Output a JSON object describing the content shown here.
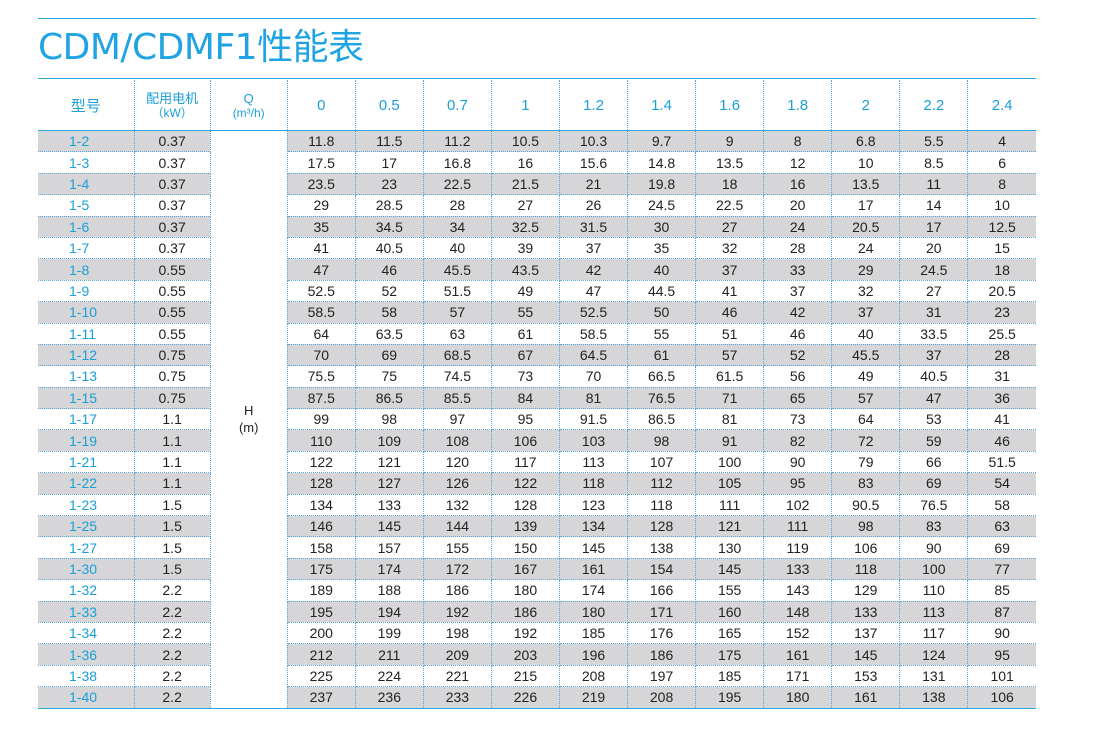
{
  "title": "CDM/CDMF1性能表",
  "headers": {
    "model": "型号",
    "motor_top": "配用电机",
    "motor_unit": "（kW）",
    "q_top": "Q",
    "q_unit": "(m³/h)",
    "flows": [
      "0",
      "0.5",
      "0.7",
      "1",
      "1.2",
      "1.4",
      "1.6",
      "1.8",
      "2",
      "2.2",
      "2.4"
    ]
  },
  "h_label": "H",
  "h_unit": "(m)",
  "rows": [
    {
      "model": "1-2",
      "kw": "0.37",
      "h": [
        "11.8",
        "11.5",
        "11.2",
        "10.5",
        "10.3",
        "9.7",
        "9",
        "8",
        "6.8",
        "5.5",
        "4"
      ]
    },
    {
      "model": "1-3",
      "kw": "0.37",
      "h": [
        "17.5",
        "17",
        "16.8",
        "16",
        "15.6",
        "14.8",
        "13.5",
        "12",
        "10",
        "8.5",
        "6"
      ]
    },
    {
      "model": "1-4",
      "kw": "0.37",
      "h": [
        "23.5",
        "23",
        "22.5",
        "21.5",
        "21",
        "19.8",
        "18",
        "16",
        "13.5",
        "11",
        "8"
      ]
    },
    {
      "model": "1-5",
      "kw": "0.37",
      "h": [
        "29",
        "28.5",
        "28",
        "27",
        "26",
        "24.5",
        "22.5",
        "20",
        "17",
        "14",
        "10"
      ]
    },
    {
      "model": "1-6",
      "kw": "0.37",
      "h": [
        "35",
        "34.5",
        "34",
        "32.5",
        "31.5",
        "30",
        "27",
        "24",
        "20.5",
        "17",
        "12.5"
      ]
    },
    {
      "model": "1-7",
      "kw": "0.37",
      "h": [
        "41",
        "40.5",
        "40",
        "39",
        "37",
        "35",
        "32",
        "28",
        "24",
        "20",
        "15"
      ]
    },
    {
      "model": "1-8",
      "kw": "0.55",
      "h": [
        "47",
        "46",
        "45.5",
        "43.5",
        "42",
        "40",
        "37",
        "33",
        "29",
        "24.5",
        "18"
      ]
    },
    {
      "model": "1-9",
      "kw": "0.55",
      "h": [
        "52.5",
        "52",
        "51.5",
        "49",
        "47",
        "44.5",
        "41",
        "37",
        "32",
        "27",
        "20.5"
      ]
    },
    {
      "model": "1-10",
      "kw": "0.55",
      "h": [
        "58.5",
        "58",
        "57",
        "55",
        "52.5",
        "50",
        "46",
        "42",
        "37",
        "31",
        "23"
      ]
    },
    {
      "model": "1-11",
      "kw": "0.55",
      "h": [
        "64",
        "63.5",
        "63",
        "61",
        "58.5",
        "55",
        "51",
        "46",
        "40",
        "33.5",
        "25.5"
      ]
    },
    {
      "model": "1-12",
      "kw": "0.75",
      "h": [
        "70",
        "69",
        "68.5",
        "67",
        "64.5",
        "61",
        "57",
        "52",
        "45.5",
        "37",
        "28"
      ]
    },
    {
      "model": "1-13",
      "kw": "0.75",
      "h": [
        "75.5",
        "75",
        "74.5",
        "73",
        "70",
        "66.5",
        "61.5",
        "56",
        "49",
        "40.5",
        "31"
      ]
    },
    {
      "model": "1-15",
      "kw": "0.75",
      "h": [
        "87.5",
        "86.5",
        "85.5",
        "84",
        "81",
        "76.5",
        "71",
        "65",
        "57",
        "47",
        "36"
      ]
    },
    {
      "model": "1-17",
      "kw": "1.1",
      "h": [
        "99",
        "98",
        "97",
        "95",
        "91.5",
        "86.5",
        "81",
        "73",
        "64",
        "53",
        "41"
      ]
    },
    {
      "model": "1-19",
      "kw": "1.1",
      "h": [
        "110",
        "109",
        "108",
        "106",
        "103",
        "98",
        "91",
        "82",
        "72",
        "59",
        "46"
      ]
    },
    {
      "model": "1-21",
      "kw": "1.1",
      "h": [
        "122",
        "121",
        "120",
        "117",
        "113",
        "107",
        "100",
        "90",
        "79",
        "66",
        "51.5"
      ]
    },
    {
      "model": "1-22",
      "kw": "1.1",
      "h": [
        "128",
        "127",
        "126",
        "122",
        "118",
        "112",
        "105",
        "95",
        "83",
        "69",
        "54"
      ]
    },
    {
      "model": "1-23",
      "kw": "1.5",
      "h": [
        "134",
        "133",
        "132",
        "128",
        "123",
        "118",
        "111",
        "102",
        "90.5",
        "76.5",
        "58"
      ]
    },
    {
      "model": "1-25",
      "kw": "1.5",
      "h": [
        "146",
        "145",
        "144",
        "139",
        "134",
        "128",
        "121",
        "111",
        "98",
        "83",
        "63"
      ]
    },
    {
      "model": "1-27",
      "kw": "1.5",
      "h": [
        "158",
        "157",
        "155",
        "150",
        "145",
        "138",
        "130",
        "119",
        "106",
        "90",
        "69"
      ]
    },
    {
      "model": "1-30",
      "kw": "1.5",
      "h": [
        "175",
        "174",
        "172",
        "167",
        "161",
        "154",
        "145",
        "133",
        "118",
        "100",
        "77"
      ]
    },
    {
      "model": "1-32",
      "kw": "2.2",
      "h": [
        "189",
        "188",
        "186",
        "180",
        "174",
        "166",
        "155",
        "143",
        "129",
        "110",
        "85"
      ]
    },
    {
      "model": "1-33",
      "kw": "2.2",
      "h": [
        "195",
        "194",
        "192",
        "186",
        "180",
        "171",
        "160",
        "148",
        "133",
        "113",
        "87"
      ]
    },
    {
      "model": "1-34",
      "kw": "2.2",
      "h": [
        "200",
        "199",
        "198",
        "192",
        "185",
        "176",
        "165",
        "152",
        "137",
        "117",
        "90"
      ]
    },
    {
      "model": "1-36",
      "kw": "2.2",
      "h": [
        "212",
        "211",
        "209",
        "203",
        "196",
        "186",
        "175",
        "161",
        "145",
        "124",
        "95"
      ]
    },
    {
      "model": "1-38",
      "kw": "2.2",
      "h": [
        "225",
        "224",
        "221",
        "215",
        "208",
        "197",
        "185",
        "171",
        "153",
        "131",
        "101"
      ]
    },
    {
      "model": "1-40",
      "kw": "2.2",
      "h": [
        "237",
        "236",
        "233",
        "226",
        "219",
        "208",
        "195",
        "180",
        "161",
        "138",
        "106"
      ]
    }
  ],
  "colors": {
    "accent": "#1fa3e3",
    "shade": "#d6d6d8",
    "text": "#222222"
  }
}
